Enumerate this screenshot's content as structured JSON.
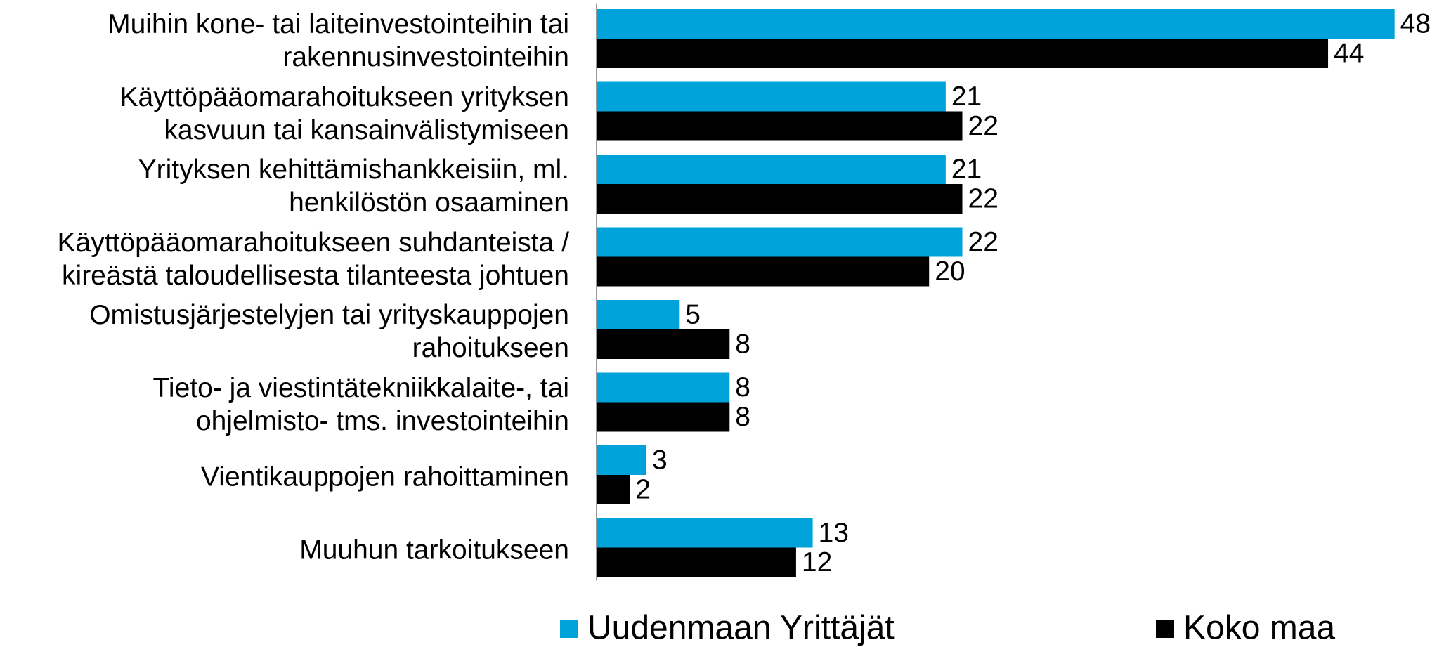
{
  "chart_data": {
    "type": "hbar",
    "categories": [
      "Muihin kone- tai laiteinvestointeihin tai\nrakennusinvestointeihin",
      "Käyttöpääomarahoitukseen yrityksen\nkasvuun tai kansainvälistymiseen",
      "Yrityksen kehittämishankkeisiin, ml.\nhenkilöstön osaaminen",
      "Käyttöpääomarahoitukseen suhdanteista /\nkireästä taloudellisesta tilanteesta johtuen",
      "Omistusjärjestelyjen tai yrityskauppojen\nrahoitukseen",
      "Tieto- ja viestintätekniikkalaite-, tai\nohjelmisto- tms. investointeihin",
      "Vientikauppojen rahoittaminen",
      "Muuhun tarkoitukseen"
    ],
    "series": [
      {
        "name": "Uudenmaan Yrittäjät",
        "color": "#00a3d9",
        "values": [
          48,
          21,
          21,
          22,
          5,
          8,
          3,
          13
        ]
      },
      {
        "name": "Koko maa",
        "color": "#000000",
        "values": [
          44,
          22,
          22,
          20,
          8,
          8,
          2,
          12
        ]
      }
    ],
    "xlim": [
      0,
      50
    ],
    "legend": "bottom"
  }
}
